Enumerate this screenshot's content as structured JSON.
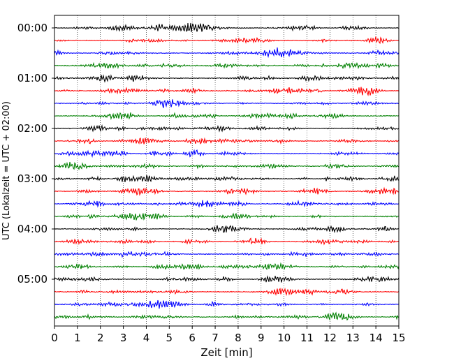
{
  "chart_data": {
    "type": "line",
    "title": "",
    "xlabel": "Zeit  [min]",
    "ylabel": "UTC (Lokalzeit = UTC + 02:00)",
    "xlim": [
      0,
      15
    ],
    "x_ticks": [
      "0",
      "1",
      "2",
      "3",
      "4",
      "5",
      "6",
      "7",
      "8",
      "9",
      "10",
      "11",
      "12",
      "13",
      "14",
      "15"
    ],
    "y_ticks": [
      {
        "label": "00:00",
        "trace": 0
      },
      {
        "label": "01:00",
        "trace": 4
      },
      {
        "label": "02:00",
        "trace": 8
      },
      {
        "label": "03:00",
        "trace": 12
      },
      {
        "label": "04:00",
        "trace": 16
      },
      {
        "label": "05:00",
        "trace": 20
      }
    ],
    "minutes_per_trace": 15,
    "trace_count": 24,
    "trace_colors": [
      "#000000",
      "#ff0000",
      "#0000ff",
      "#008000"
    ],
    "grid": "vertical dotted at each minute",
    "legend": "none"
  }
}
